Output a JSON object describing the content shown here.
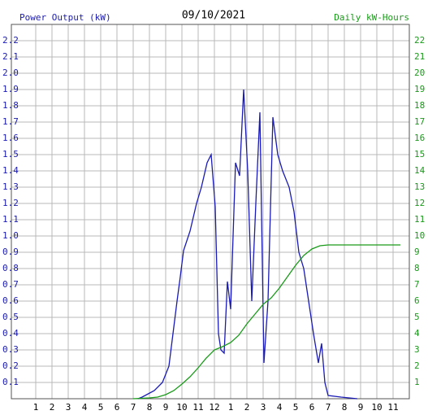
{
  "chart_data": {
    "type": "line",
    "title": "09/10/2021",
    "series": [
      {
        "name": "Power Output (kW)",
        "color": "#1a1ab4",
        "x": [
          7.3,
          7.55,
          8.3,
          8.8,
          9.2,
          9.45,
          9.7,
          9.9,
          10.1,
          10.5,
          10.9,
          11.2,
          11.55,
          11.8,
          12.05,
          12.25,
          12.4,
          12.6,
          12.8,
          13.0,
          13.3,
          13.55,
          13.8,
          14.05,
          14.3,
          14.55,
          14.8,
          15.05,
          15.3,
          15.6,
          15.9,
          16.2,
          16.6,
          16.9,
          17.2,
          17.5,
          17.8,
          18.1,
          18.4,
          18.6,
          18.8,
          19.0,
          19.8,
          20.8
        ],
        "values": [
          0,
          0.01,
          0.05,
          0.1,
          0.2,
          0.4,
          0.6,
          0.75,
          0.91,
          1.03,
          1.2,
          1.3,
          1.45,
          1.5,
          1.18,
          0.4,
          0.3,
          0.28,
          0.72,
          0.55,
          1.45,
          1.37,
          1.9,
          1.4,
          0.6,
          1.2,
          1.76,
          0.22,
          0.6,
          1.73,
          1.5,
          1.4,
          1.3,
          1.15,
          0.9,
          0.8,
          0.6,
          0.4,
          0.22,
          0.34,
          0.1,
          0.02,
          0.01,
          0
        ]
      },
      {
        "name": "Daily kW-Hours",
        "color": "#1a9a1a",
        "axis": "y2",
        "x": [
          7.0,
          8,
          8.5,
          9,
          9.5,
          10,
          10.5,
          11,
          11.5,
          12,
          12.5,
          13,
          13.5,
          14,
          14.5,
          15,
          15.5,
          16,
          16.5,
          17,
          17.5,
          18,
          18.5,
          19,
          23.45
        ],
        "values": [
          0,
          0.05,
          0.1,
          0.25,
          0.5,
          0.9,
          1.35,
          1.9,
          2.5,
          3.0,
          3.2,
          3.45,
          3.9,
          4.6,
          5.2,
          5.8,
          6.2,
          6.8,
          7.5,
          8.2,
          8.8,
          9.2,
          9.4,
          9.45,
          9.45
        ]
      }
    ],
    "xlim": [
      -0.5,
      24
    ],
    "xticks": [
      1,
      2,
      3,
      4,
      5,
      6,
      7,
      8,
      9,
      10,
      11,
      12,
      {
        "value": 13,
        "label": "1"
      },
      {
        "value": 14,
        "label": "2"
      },
      {
        "value": 15,
        "label": "3"
      },
      {
        "value": 16,
        "label": "4"
      },
      {
        "value": 17,
        "label": "5"
      },
      {
        "value": 18,
        "label": "6"
      },
      {
        "value": 19,
        "label": "7"
      },
      {
        "value": 20,
        "label": "8"
      },
      {
        "value": 21,
        "label": "9"
      },
      {
        "value": 22,
        "label": "10"
      },
      {
        "value": 23,
        "label": "11"
      }
    ],
    "ylim": [
      0,
      2.3
    ],
    "yticks": [
      0.1,
      0.2,
      0.3,
      0.4,
      0.5,
      0.6,
      0.7,
      0.8,
      0.9,
      {
        "value": 1,
        "label": "1.0"
      },
      1.1,
      1.2,
      1.3,
      1.4,
      1.5,
      1.6,
      1.7,
      1.8,
      1.9,
      {
        "value": 2,
        "label": "2.0"
      },
      2.1,
      2.2
    ],
    "y2lim": [
      0,
      23
    ],
    "y2ticks": [
      1,
      2,
      3,
      4,
      5,
      6,
      7,
      8,
      9,
      10,
      11,
      12,
      13,
      14,
      15,
      16,
      17,
      18,
      19,
      20,
      21,
      22
    ],
    "grid": true
  }
}
